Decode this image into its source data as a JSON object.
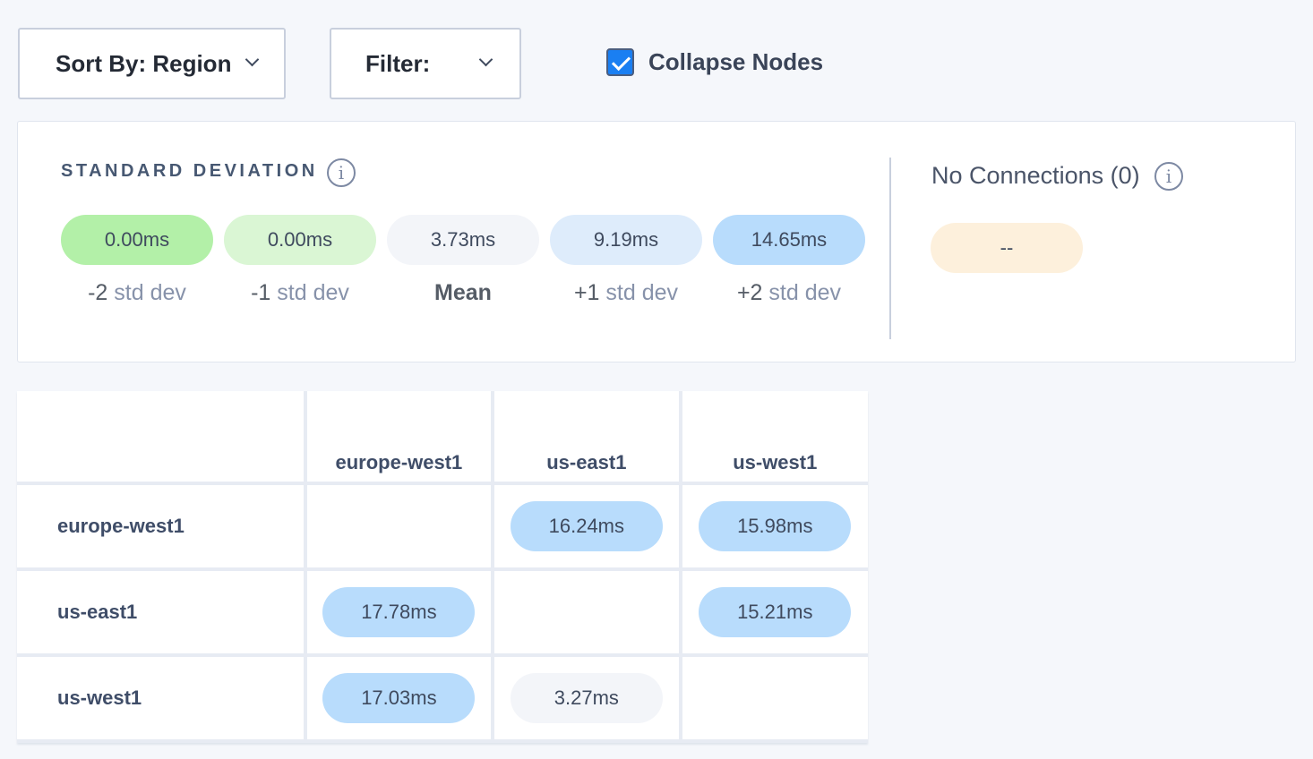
{
  "toolbar": {
    "sort_label": "Sort By: Region",
    "filter_label": "Filter:",
    "collapse_label": "Collapse Nodes",
    "collapse_checked": true
  },
  "std_dev": {
    "title": "STANDARD DEVIATION",
    "pills": [
      {
        "value": "0.00ms",
        "prefix": "-2",
        "suffix": " std dev",
        "color": "#b3f0a8"
      },
      {
        "value": "0.00ms",
        "prefix": "-1",
        "suffix": " std dev",
        "color": "#daf6d4"
      },
      {
        "value": "3.73ms",
        "prefix": "Mean",
        "suffix": "",
        "color": "#f3f5f9"
      },
      {
        "value": "9.19ms",
        "prefix": "+1",
        "suffix": " std dev",
        "color": "#deecfb"
      },
      {
        "value": "14.65ms",
        "prefix": "+2",
        "suffix": " std dev",
        "color": "#b8dcfc"
      }
    ]
  },
  "no_connections": {
    "label": "No Connections (0)",
    "value": "--",
    "color": "#fdf0dc"
  },
  "matrix": {
    "columns": [
      "europe-west1",
      "us-east1",
      "us-west1"
    ],
    "rows": [
      {
        "label": "europe-west1",
        "cells": [
          null,
          {
            "v": "16.24ms",
            "c": "#b8dcfc"
          },
          {
            "v": "15.98ms",
            "c": "#b8dcfc"
          }
        ]
      },
      {
        "label": "us-east1",
        "cells": [
          {
            "v": "17.78ms",
            "c": "#b8dcfc"
          },
          null,
          {
            "v": "15.21ms",
            "c": "#b8dcfc"
          }
        ]
      },
      {
        "label": "us-west1",
        "cells": [
          {
            "v": "17.03ms",
            "c": "#b8dcfc"
          },
          {
            "v": "3.27ms",
            "c": "#f3f5f9"
          },
          null
        ]
      }
    ]
  }
}
